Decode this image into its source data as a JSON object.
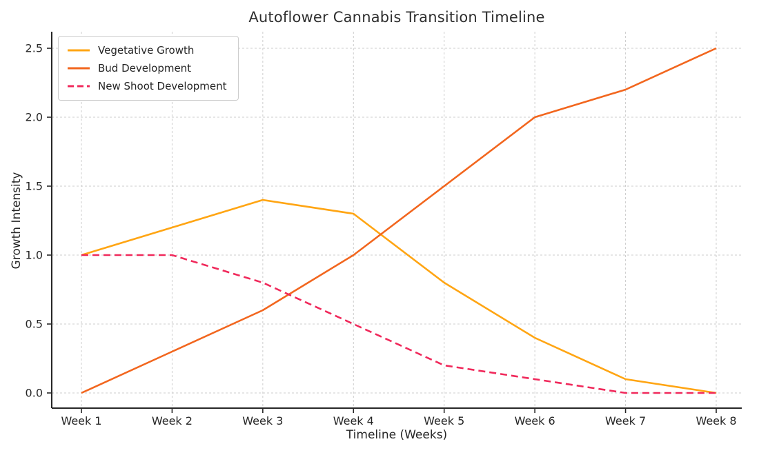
{
  "figure": {
    "background": "#ffffff",
    "title_color": "#2e2e2e",
    "axis_color": "#262626",
    "grid_color": "#cdcdcd",
    "legend_border_color": "#cccccc"
  },
  "chart_data": {
    "type": "line",
    "title": "Autoflower Cannabis Transition Timeline",
    "xlabel": "Timeline (Weeks)",
    "ylabel": "Growth Intensity",
    "categories": [
      "Week 1",
      "Week 2",
      "Week 3",
      "Week 4",
      "Week 5",
      "Week 6",
      "Week 7",
      "Week 8"
    ],
    "yticks": [
      0.0,
      0.5,
      1.0,
      1.5,
      2.0,
      2.5
    ],
    "ylim": [
      -0.11,
      2.62
    ],
    "grid": true,
    "grid_style": "dashed",
    "legend_position": "upper-left",
    "series": [
      {
        "name": "Vegetative Growth",
        "color": "#FFA513",
        "line_style": "solid",
        "values": [
          1.0,
          1.2,
          1.4,
          1.3,
          0.8,
          0.4,
          0.1,
          0.0
        ]
      },
      {
        "name": "Bud Development",
        "color": "#F2661E",
        "line_style": "solid",
        "values": [
          0.0,
          0.3,
          0.6,
          1.0,
          1.5,
          2.0,
          2.2,
          2.5
        ]
      },
      {
        "name": "New Shoot Development",
        "color": "#F0295B",
        "line_style": "dashed",
        "values": [
          1.0,
          1.0,
          0.8,
          0.5,
          0.2,
          0.1,
          0.0,
          0.0
        ]
      }
    ]
  }
}
